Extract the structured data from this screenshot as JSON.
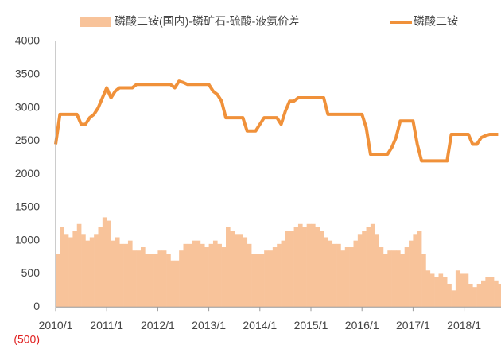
{
  "chart_data": {
    "type": "bar-line",
    "categories": [
      "2010/1",
      "2010/2",
      "2010/3",
      "2010/4",
      "2010/5",
      "2010/6",
      "2010/7",
      "2010/8",
      "2010/9",
      "2010/10",
      "2010/11",
      "2010/12",
      "2011/1",
      "2011/2",
      "2011/3",
      "2011/4",
      "2011/5",
      "2011/6",
      "2011/7",
      "2011/8",
      "2011/9",
      "2011/10",
      "2011/11",
      "2011/12",
      "2012/1",
      "2012/2",
      "2012/3",
      "2012/4",
      "2012/5",
      "2012/6",
      "2012/7",
      "2012/8",
      "2012/9",
      "2012/10",
      "2012/11",
      "2012/12",
      "2013/1",
      "2013/2",
      "2013/3",
      "2013/4",
      "2013/5",
      "2013/6",
      "2013/7",
      "2013/8",
      "2013/9",
      "2013/10",
      "2013/11",
      "2013/12",
      "2014/1",
      "2014/2",
      "2014/3",
      "2014/4",
      "2014/5",
      "2014/6",
      "2014/7",
      "2014/8",
      "2014/9",
      "2014/10",
      "2014/11",
      "2014/12",
      "2015/1",
      "2015/2",
      "2015/3",
      "2015/4",
      "2015/5",
      "2015/6",
      "2015/7",
      "2015/8",
      "2015/9",
      "2015/10",
      "2015/11",
      "2015/12",
      "2016/1",
      "2016/2",
      "2016/3",
      "2016/4",
      "2016/5",
      "2016/6",
      "2016/7",
      "2016/8",
      "2016/9",
      "2016/10",
      "2016/11",
      "2016/12",
      "2017/1",
      "2017/2",
      "2017/3",
      "2017/4",
      "2017/5",
      "2017/6",
      "2017/7",
      "2017/8",
      "2017/9",
      "2017/10",
      "2017/11",
      "2017/12",
      "2018/1",
      "2018/2",
      "2018/3",
      "2018/4",
      "2018/5",
      "2018/6",
      "2018/7",
      "2018/8",
      "2018/9"
    ],
    "series": [
      {
        "name": "磷酸二铵(国内)-磷矿石-硫酸-液氨价差",
        "kind": "bar",
        "color": "#f8c39a",
        "values": [
          800,
          1200,
          1100,
          1050,
          1150,
          1250,
          1100,
          1000,
          1050,
          1100,
          1200,
          1350,
          1300,
          1000,
          1050,
          950,
          950,
          1000,
          850,
          850,
          900,
          800,
          800,
          800,
          850,
          850,
          800,
          700,
          700,
          850,
          950,
          950,
          1000,
          1000,
          950,
          900,
          950,
          1000,
          950,
          900,
          1200,
          1150,
          1100,
          1100,
          1050,
          950,
          800,
          800,
          800,
          850,
          850,
          900,
          950,
          1000,
          1150,
          1150,
          1200,
          1250,
          1200,
          1250,
          1250,
          1200,
          1150,
          1050,
          1000,
          950,
          950,
          850,
          900,
          900,
          1000,
          1100,
          1150,
          1200,
          1250,
          1100,
          900,
          800,
          850,
          850,
          850,
          800,
          900,
          1000,
          1100,
          1150,
          800,
          550,
          500,
          450,
          500,
          450,
          350,
          250,
          550,
          500,
          500,
          350,
          300,
          350,
          400,
          450,
          450,
          400,
          350
        ]
      },
      {
        "name": "磷酸二铵",
        "kind": "line",
        "color": "#f0913a",
        "values": [
          2450,
          2900,
          2900,
          2900,
          2900,
          2900,
          2750,
          2750,
          2850,
          2900,
          3000,
          3150,
          3300,
          3150,
          3250,
          3300,
          3300,
          3300,
          3300,
          3350,
          3350,
          3350,
          3350,
          3350,
          3350,
          3350,
          3350,
          3350,
          3300,
          3400,
          3380,
          3350,
          3350,
          3350,
          3350,
          3350,
          3350,
          3250,
          3200,
          3100,
          2850,
          2850,
          2850,
          2850,
          2850,
          2650,
          2650,
          2650,
          2750,
          2850,
          2850,
          2850,
          2850,
          2750,
          2950,
          3100,
          3100,
          3150,
          3150,
          3150,
          3150,
          3150,
          3150,
          3150,
          2900,
          2900,
          2900,
          2900,
          2900,
          2900,
          2900,
          2900,
          2900,
          2700,
          2300,
          2300,
          2300,
          2300,
          2300,
          2400,
          2550,
          2800,
          2800,
          2800,
          2800,
          2450,
          2200,
          2200,
          2200,
          2200,
          2200,
          2200,
          2200,
          2600,
          2600,
          2600,
          2600,
          2600,
          2450,
          2450,
          2550,
          2580,
          2600,
          2600,
          2600
        ]
      }
    ],
    "ylim": [
      -500,
      4000
    ],
    "yticks": [
      {
        "value": -500,
        "label": "(500)"
      },
      0,
      500,
      1000,
      1500,
      2000,
      2500,
      3000,
      3500,
      4000
    ],
    "negative_tick_color": "#e02020",
    "legend": "top"
  }
}
